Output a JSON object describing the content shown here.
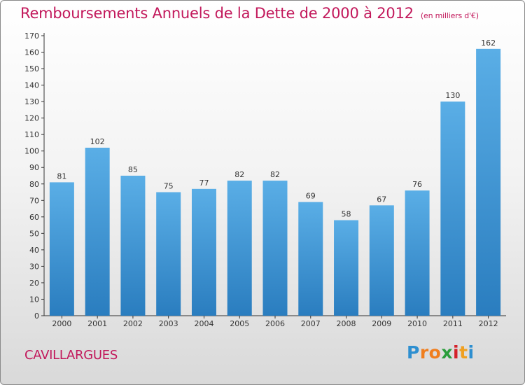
{
  "title": {
    "main": "Remboursements Annuels de la Dette de 2000 à 2012",
    "unit": "(en milliers d'€)"
  },
  "place_label": "CAVILLARGUES",
  "brand": {
    "name": "Proxiti",
    "letters": [
      "P",
      "r",
      "o",
      "x",
      "i",
      "t",
      "i"
    ],
    "letter_colors": [
      "#2e8fd0",
      "#f07e1e",
      "#f07e1e",
      "#2a9d3a",
      "#d4222a",
      "#f0a020",
      "#2e8fd0"
    ]
  },
  "chart_data": {
    "type": "bar",
    "categories": [
      "2000",
      "2001",
      "2002",
      "2003",
      "2004",
      "2005",
      "2006",
      "2007",
      "2008",
      "2009",
      "2010",
      "2011",
      "2012"
    ],
    "values": [
      81,
      102,
      85,
      75,
      77,
      82,
      82,
      69,
      58,
      67,
      76,
      130,
      162
    ],
    "title": "Remboursements Annuels de la Dette de 2000 à 2012",
    "ylim": [
      0,
      170
    ],
    "ytick_step": 10,
    "grid": false,
    "bar_color_top": "#5aaee6",
    "bar_color_bottom": "#2a7dbf"
  }
}
